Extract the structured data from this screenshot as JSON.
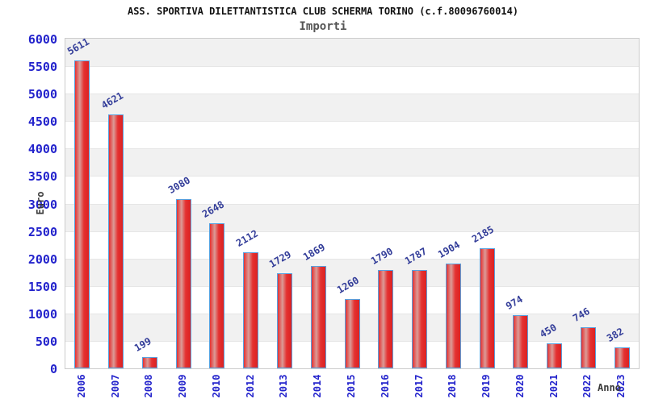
{
  "chart_data": {
    "type": "bar",
    "title": "ASS. SPORTIVA DILETTANTISTICA CLUB SCHERMA TORINO (c.f.80096760014)",
    "subtitle": "Importi",
    "xlabel": "Anno",
    "ylabel": "Euro",
    "categories": [
      "2006",
      "2007",
      "2008",
      "2009",
      "2010",
      "2012",
      "2013",
      "2014",
      "2015",
      "2016",
      "2017",
      "2018",
      "2019",
      "2020",
      "2021",
      "2022",
      "2023"
    ],
    "values": [
      5611,
      4621,
      199,
      3080,
      2648,
      2112,
      1729,
      1869,
      1260,
      1790,
      1787,
      1904,
      2185,
      974,
      450,
      746,
      382
    ],
    "ylim": [
      0,
      6000
    ],
    "ytick_step": 500,
    "grid": true,
    "legend_position": "none",
    "colors": {
      "axis_tick_label": "#2323cc",
      "value_label": "#333d99",
      "bar_border": "#58a2e0",
      "bar_red": "#e43131",
      "bar_red_dark": "#dc2222",
      "bar_highlight": "#db9b97",
      "band_gray": "#f1f1f1",
      "gridline": "#e6e6e6",
      "plot_border": "#cccccc",
      "title_color": "#111111",
      "subtitle_color": "#555555",
      "axis_title_color": "#3a3a3a"
    }
  }
}
